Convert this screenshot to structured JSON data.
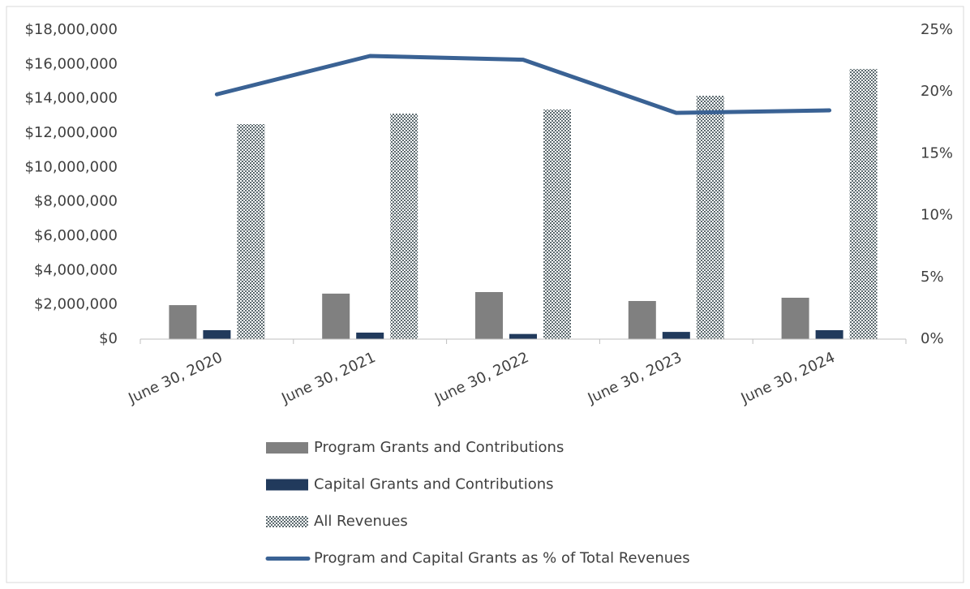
{
  "chart_data": {
    "type": "bar",
    "categories": [
      "June 30, 2020",
      "June 30, 2021",
      "June 30, 2022",
      "June 30, 2023",
      "June 30, 2024"
    ],
    "series": [
      {
        "name": "Program Grants and Contributions",
        "color": "#808080",
        "values": [
          1980000,
          2650000,
          2740000,
          2220000,
          2410000
        ]
      },
      {
        "name": "Capital Grants and Contributions",
        "color": "#213a5c",
        "values": [
          520000,
          380000,
          300000,
          420000,
          520000
        ]
      },
      {
        "name": "All Revenues",
        "color": "#5d6b70",
        "pattern": "checker",
        "values": [
          12520000,
          13130000,
          13370000,
          14170000,
          15730000
        ]
      },
      {
        "name": "Program and Capital Grants as % of Total Revenues",
        "type": "line",
        "axis": "y2",
        "color": "#3a6294",
        "values": [
          19.8,
          22.9,
          22.6,
          18.3,
          18.5
        ]
      }
    ],
    "ylim": [
      0,
      18000000
    ],
    "yticks": [
      {
        "value": 0,
        "label": "$0"
      },
      {
        "value": 2000000,
        "label": "$2,000,000"
      },
      {
        "value": 4000000,
        "label": "$4,000,000"
      },
      {
        "value": 6000000,
        "label": "$6,000,000"
      },
      {
        "value": 8000000,
        "label": "$8,000,000"
      },
      {
        "value": 10000000,
        "label": "$10,000,000"
      },
      {
        "value": 12000000,
        "label": "$12,000,000"
      },
      {
        "value": 14000000,
        "label": "$14,000,000"
      },
      {
        "value": 16000000,
        "label": "$16,000,000"
      },
      {
        "value": 18000000,
        "label": "$18,000,000"
      }
    ],
    "y2lim": [
      0,
      25
    ],
    "y2ticks": [
      {
        "value": 0,
        "label": "0%"
      },
      {
        "value": 5,
        "label": "5%"
      },
      {
        "value": 10,
        "label": "10%"
      },
      {
        "value": 15,
        "label": "15%"
      },
      {
        "value": 20,
        "label": "20%"
      },
      {
        "value": 25,
        "label": "25%"
      }
    ],
    "grid": false,
    "legend": "bottom"
  }
}
